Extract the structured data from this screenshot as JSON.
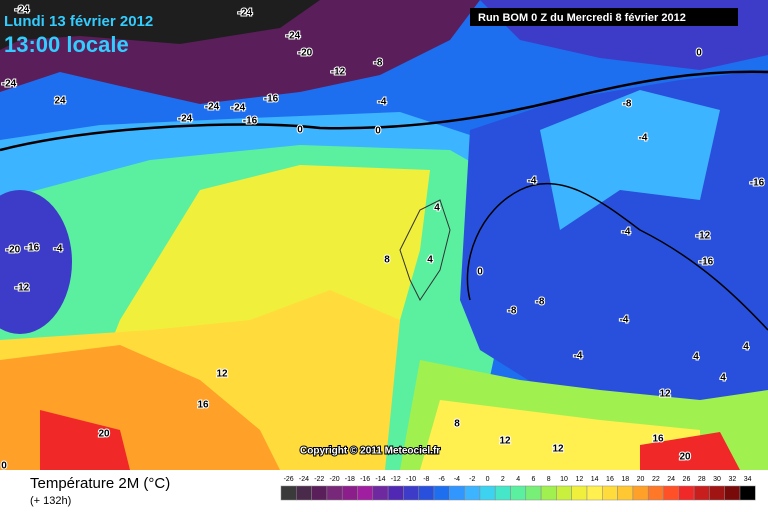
{
  "header": {
    "date": "Lundi 13 février 2012",
    "time": "13:00 locale",
    "run": "Run BOM 0 Z du Mercredi 8 février 2012"
  },
  "copyright": "Copyright © 2011 Meteociel.fr",
  "footer": {
    "title": "Température 2M (°C)",
    "lead": "(+ 132h)"
  },
  "contour_labels": [
    -24,
    -24,
    -24,
    -20,
    -12,
    -8,
    -4,
    24,
    -24,
    -24,
    -24,
    -16,
    -16,
    0,
    0,
    0,
    -8,
    -4,
    -4,
    -16,
    4,
    -4,
    -12,
    -16,
    8,
    4,
    0,
    -8,
    -8,
    -4,
    -4,
    4,
    4,
    12,
    16,
    20,
    12,
    8,
    12,
    16,
    20,
    -12,
    -20,
    -16,
    -4,
    0,
    -24,
    4,
    12
  ],
  "legend": {
    "ticks": [
      -26,
      -24,
      -22,
      -20,
      -18,
      -16,
      -14,
      -12,
      -10,
      -8,
      -6,
      -4,
      -2,
      0,
      2,
      4,
      6,
      8,
      10,
      12,
      14,
      16,
      18,
      20,
      22,
      24,
      26,
      28,
      30,
      32,
      34
    ],
    "colors": [
      "#3a3a3a",
      "#4a2a4a",
      "#5a1e5a",
      "#782878",
      "#8c1e8c",
      "#a01ea0",
      "#6e28a0",
      "#5028b4",
      "#3c3cc8",
      "#2850dc",
      "#1e6ef0",
      "#3296ff",
      "#3cb4ff",
      "#3cd2f0",
      "#46e6c8",
      "#5af0a0",
      "#78f078",
      "#a0f050",
      "#c8f03c",
      "#f0f03c",
      "#fff050",
      "#ffdc3c",
      "#ffc832",
      "#ffa028",
      "#ff7828",
      "#ff5028",
      "#f02828",
      "#c81e1e",
      "#a01414",
      "#780a0a",
      "#000000"
    ]
  }
}
